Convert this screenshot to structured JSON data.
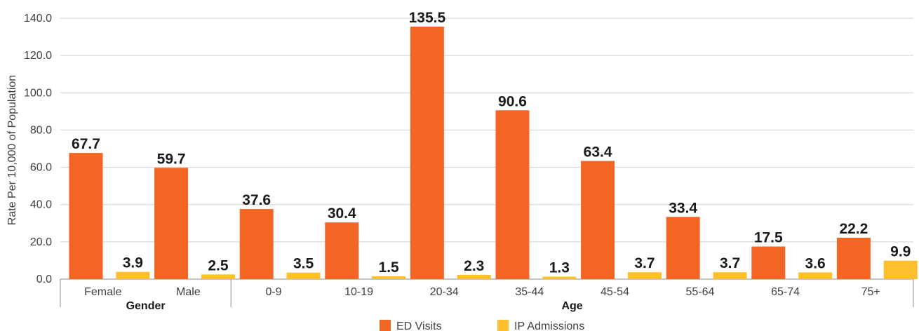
{
  "chart_data": {
    "type": "bar",
    "ylabel": "Rate Per 10,000 of Population",
    "ylim": [
      0,
      140
    ],
    "yticks": [
      "0.0",
      "20.0",
      "40.0",
      "60.0",
      "80.0",
      "100.0",
      "120.0",
      "140.0"
    ],
    "grid": true,
    "legend_position": "bottom",
    "groups": [
      {
        "label": "Gender",
        "categories": [
          "Female",
          "Male"
        ]
      },
      {
        "label": "Age",
        "categories": [
          "0-9",
          "10-19",
          "20-34",
          "35-44",
          "45-54",
          "55-64",
          "65-74",
          "75+"
        ]
      }
    ],
    "categories": [
      "Female",
      "Male",
      "0-9",
      "10-19",
      "20-34",
      "35-44",
      "45-54",
      "55-64",
      "65-74",
      "75+"
    ],
    "series": [
      {
        "name": "ED Visits",
        "color": "#F26522",
        "values": [
          67.7,
          59.7,
          37.6,
          30.4,
          135.5,
          90.6,
          63.4,
          33.4,
          17.5,
          22.2
        ]
      },
      {
        "name": "IP Admissions",
        "color": "#FDBF2D",
        "values": [
          3.9,
          2.5,
          3.5,
          1.5,
          2.3,
          1.3,
          3.7,
          3.7,
          3.6,
          9.9
        ]
      }
    ]
  }
}
